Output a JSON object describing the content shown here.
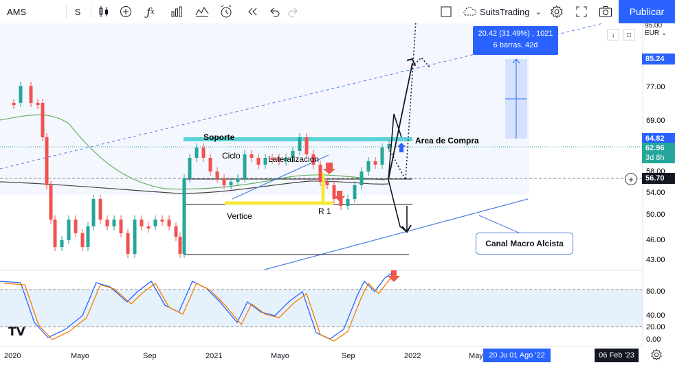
{
  "toolbar": {
    "symbol": "AMS",
    "interval": "S",
    "brand": "SuitsTrading",
    "publish_label": "Publicar"
  },
  "price_axis": {
    "currency": "EUR",
    "top_label": "95.00",
    "ticks": [
      "85.24",
      "77.00",
      "69.00",
      "64.82",
      "62.96",
      "3d 8h",
      "58.00",
      "56.70",
      "54.00",
      "50.00",
      "46.00",
      "43.00"
    ],
    "osc_ticks": [
      "80.00",
      "40.00",
      "20.00",
      "0.00"
    ]
  },
  "tags": {
    "target": "85.24",
    "entry": "64.82",
    "last_price": "62.96",
    "countdown": "3d 8h",
    "crosshair": "56.70"
  },
  "measure": {
    "line1": "20.42 (31.49%) , 1021",
    "line2": "6 barras, 42d"
  },
  "annotations": {
    "soporte": "Soporte",
    "ciclo": "Ciclo",
    "lateralizacion": "Lateralizacion",
    "area_compra": "Area de Compra",
    "vertice": "Vertice",
    "r1": "R 1",
    "canal": "Canal Macro Alcista"
  },
  "time_axis": {
    "ticks": [
      "2020",
      "Mayo",
      "Sep",
      "2021",
      "Mayo",
      "Sep",
      "2022",
      "May"
    ],
    "range_tag": "20 Ju  01 Ago '22",
    "date_tag": "06 Feb '23"
  },
  "colors": {
    "up": "#26a69a",
    "down": "#ef5350",
    "accent": "#2962ff",
    "support": "#5bd3d6",
    "vertex": "#f5e83a",
    "ma_green": "#6aaf62",
    "osc_blue": "#2962ff",
    "osc_orange": "#f57c00"
  }
}
